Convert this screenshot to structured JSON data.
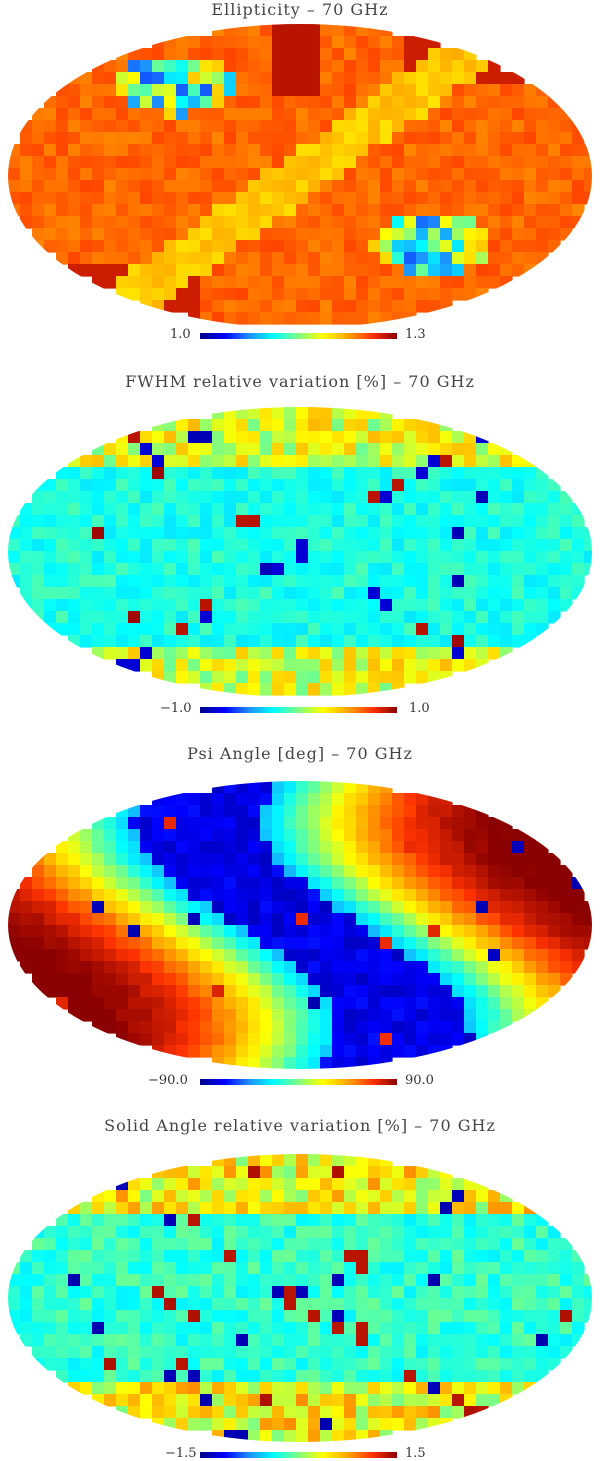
{
  "palette": [
    "#00008b",
    "#0000ff",
    "#1e90ff",
    "#00ffff",
    "#7fff7f",
    "#ffff00",
    "#ffa500",
    "#ff3300",
    "#8b0000"
  ],
  "maps": [
    {
      "id": "ellipticity",
      "title": "Ellipticity  –  70 GHz",
      "min_label": "1.0",
      "max_label": "1.3",
      "pattern": "ellipticity"
    },
    {
      "id": "fwhm",
      "title": "FWHM relative variation [%]  – 70 GHz",
      "min_label": "−1.0",
      "max_label": "1.0",
      "pattern": "fwhm"
    },
    {
      "id": "psi",
      "title": "Psi Angle [deg] – 70 GHz",
      "min_label": "−90.0",
      "max_label": "90.0",
      "pattern": "psi"
    },
    {
      "id": "solid-angle",
      "title": "Solid Angle relative variation [%] – 70 GHz",
      "min_label": "−1.5",
      "max_label": "1.5",
      "pattern": "solid"
    }
  ]
}
